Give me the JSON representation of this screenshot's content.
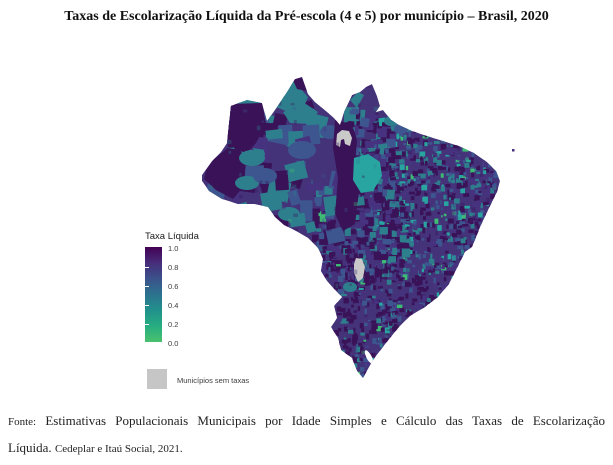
{
  "title": "Taxas de Escolarização Líquida da Pré-escola (4 e 5) por município – Brasil, 2020",
  "legend": {
    "title": "Taxa Líquida",
    "ticks": [
      "1.0",
      "0.8",
      "0.6",
      "0.4",
      "0.2",
      "0.0"
    ],
    "gradient_stops": [
      "#440154",
      "#472d7b",
      "#3b528b",
      "#2c728e",
      "#21918c",
      "#27ad81",
      "#4ac16d"
    ],
    "no_data": {
      "label": "Municípios sem taxas",
      "color": "#c6c6c6"
    }
  },
  "map": {
    "region": "Brasil",
    "unit": "município",
    "palette": {
      "dark": "#3a1258",
      "purple": "#46327e",
      "blue": "#3d568f",
      "teal": "#2e7f8e",
      "teal_bright": "#28a5a0",
      "green": "#3fbc73",
      "no_data_gray": "#c9c9c9",
      "base": "#443379",
      "water": "#ffffff"
    }
  },
  "source": {
    "label": "Fonte:",
    "line1": "Estimativas Populacionais Municipais por Idade Simples e Cálculo das Taxas de Escolarização",
    "line2_main": "Líquida.",
    "line2_credit": "Cedeplar e Itaú Social, 2021."
  }
}
